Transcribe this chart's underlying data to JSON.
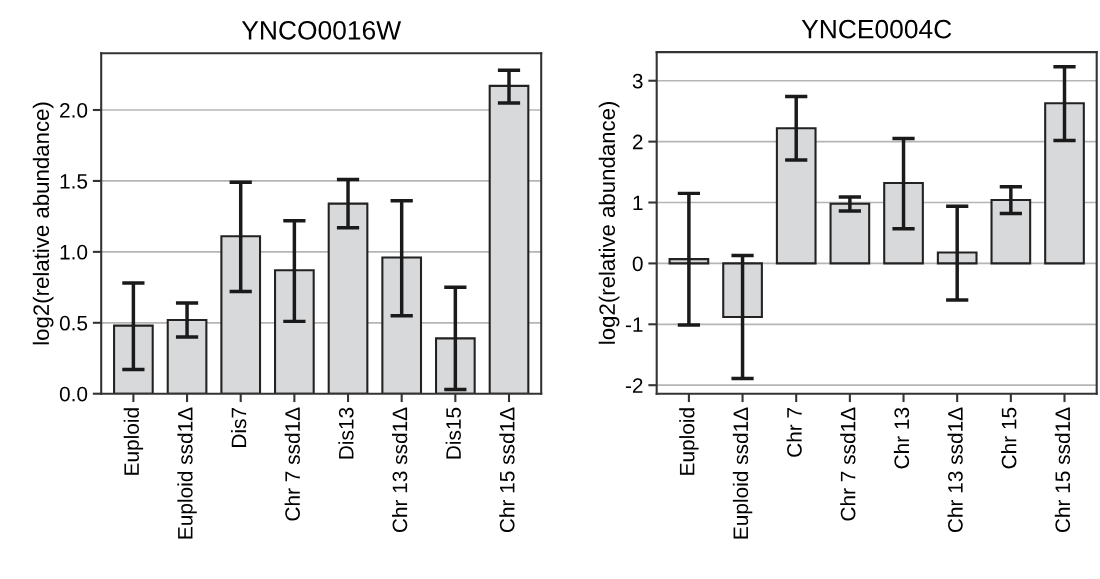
{
  "chart_data": [
    {
      "type": "bar",
      "title": "YNCO0016W",
      "ylabel": "log2(relative abundance)",
      "categories": [
        "Euploid",
        "Euploid ssd1Δ",
        "Dis7",
        "Chr 7 ssd1Δ",
        "Dis13",
        "Chr 13 ssd1Δ",
        "Dis15",
        "Chr 15 ssd1Δ"
      ],
      "values": [
        0.48,
        0.52,
        1.11,
        0.87,
        1.34,
        0.96,
        0.39,
        2.17
      ],
      "errors": [
        [
          0.17,
          0.78
        ],
        [
          0.4,
          0.64
        ],
        [
          0.72,
          1.49
        ],
        [
          0.51,
          1.22
        ],
        [
          1.17,
          1.51
        ],
        [
          0.55,
          1.36
        ],
        [
          0.03,
          0.75
        ],
        [
          2.05,
          2.28
        ]
      ],
      "color": "#d8d9da",
      "ylim": [
        0,
        2.4
      ],
      "yticks": [
        {
          "value": 0,
          "label": "0.0"
        },
        0.5,
        {
          "value": 1,
          "label": "1.0"
        },
        1.5,
        {
          "value": 2,
          "label": "2.0"
        }
      ],
      "grid": "y"
    },
    {
      "type": "bar",
      "title": "YNCE0004C",
      "ylabel": "log2(relative abundance)",
      "categories": [
        "Euploid",
        "Euploid ssd1Δ",
        "Chr 7",
        "Chr 7 ssd1Δ",
        "Chr 13",
        "Chr 13 ssd1Δ",
        "Chr 15",
        "Chr 15 ssd1Δ"
      ],
      "values": [
        0.07,
        -0.88,
        2.22,
        0.98,
        1.32,
        0.18,
        1.04,
        2.63
      ],
      "errors": [
        [
          -1.01,
          1.15
        ],
        [
          -1.89,
          0.13
        ],
        [
          1.7,
          2.74
        ],
        [
          0.86,
          1.09
        ],
        [
          0.57,
          2.05
        ],
        [
          -0.6,
          0.94
        ],
        [
          0.82,
          1.26
        ],
        [
          2.02,
          3.23
        ]
      ],
      "color": "#d8d9da",
      "ylim": [
        -2.14,
        3.47
      ],
      "yticks": [
        {
          "value": -2,
          "label": "-2"
        },
        {
          "value": -1,
          "label": "-1"
        },
        0,
        1,
        2,
        3
      ],
      "grid": "y"
    }
  ]
}
